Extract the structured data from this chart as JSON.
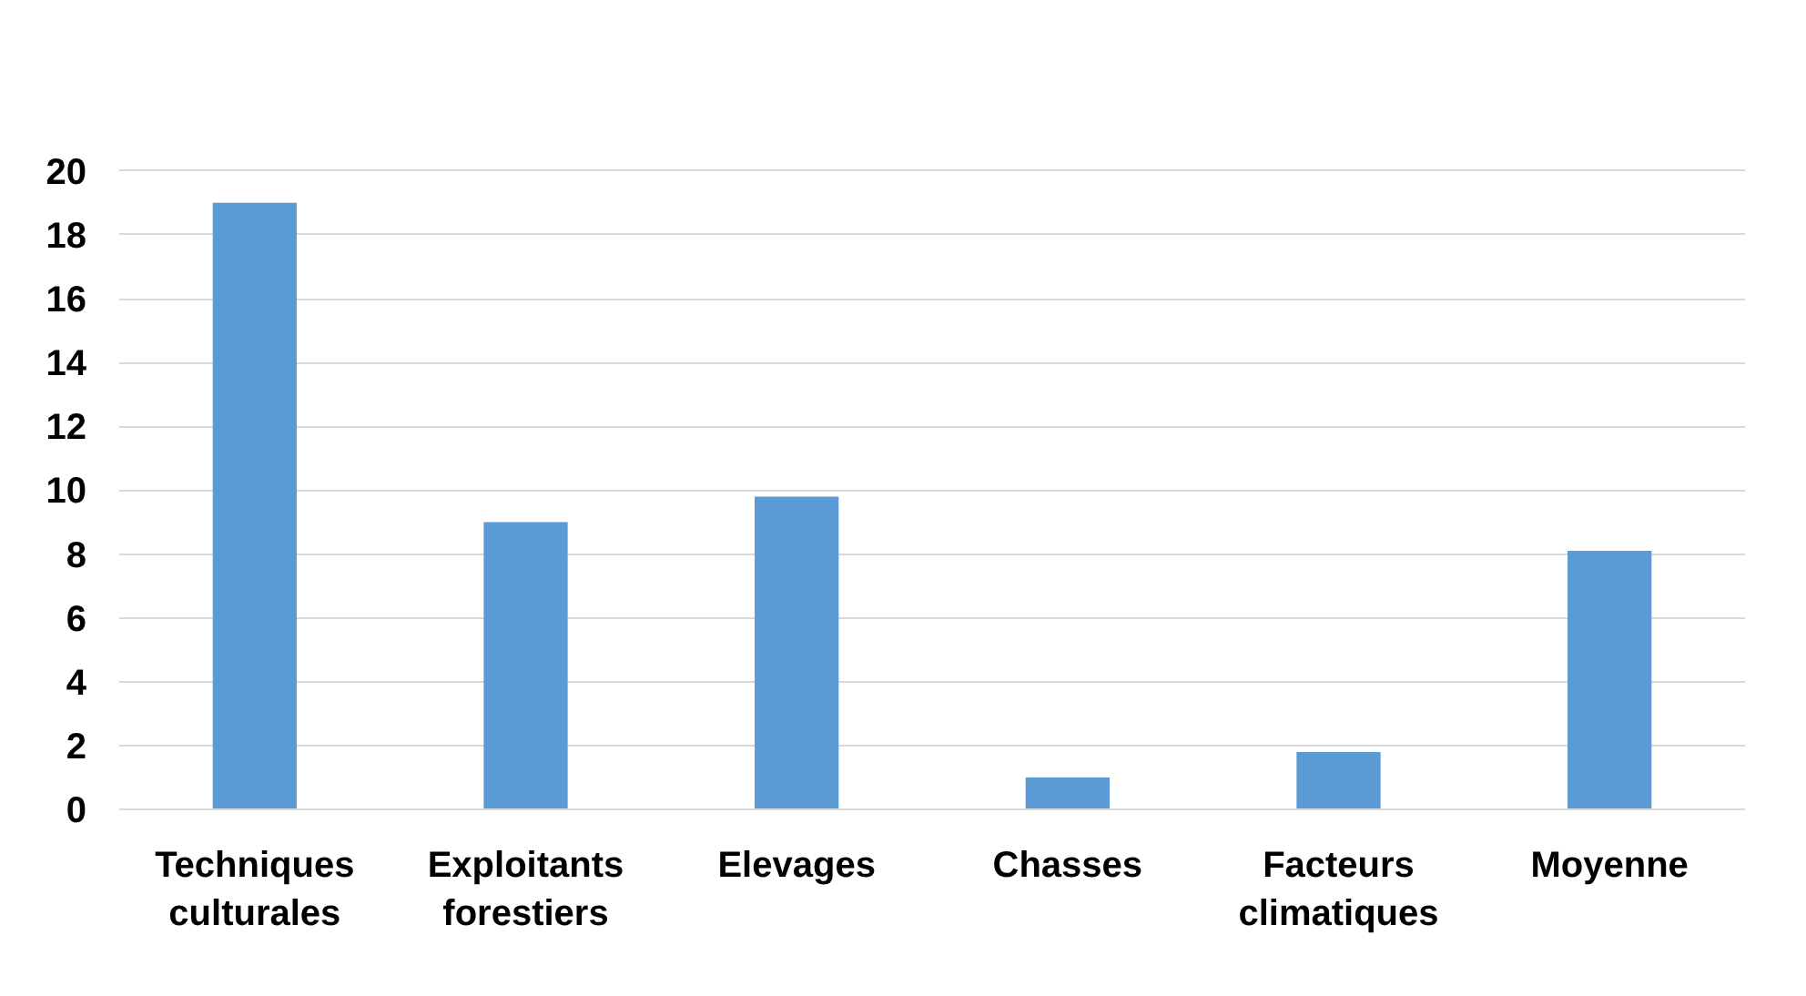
{
  "chart_data": {
    "type": "bar",
    "categories": [
      "Techniques culturales",
      "Exploitants forestiers",
      "Elevages",
      "Chasses",
      "Facteurs climatiques",
      "Moyenne"
    ],
    "values": [
      19,
      9,
      9.8,
      1,
      1.8,
      8.1
    ],
    "color": "#5b9bd5",
    "ylim": [
      0,
      20
    ],
    "yticks": [
      0,
      2,
      4,
      6,
      8,
      10,
      12,
      14,
      16,
      18,
      20
    ],
    "grid": "y"
  }
}
